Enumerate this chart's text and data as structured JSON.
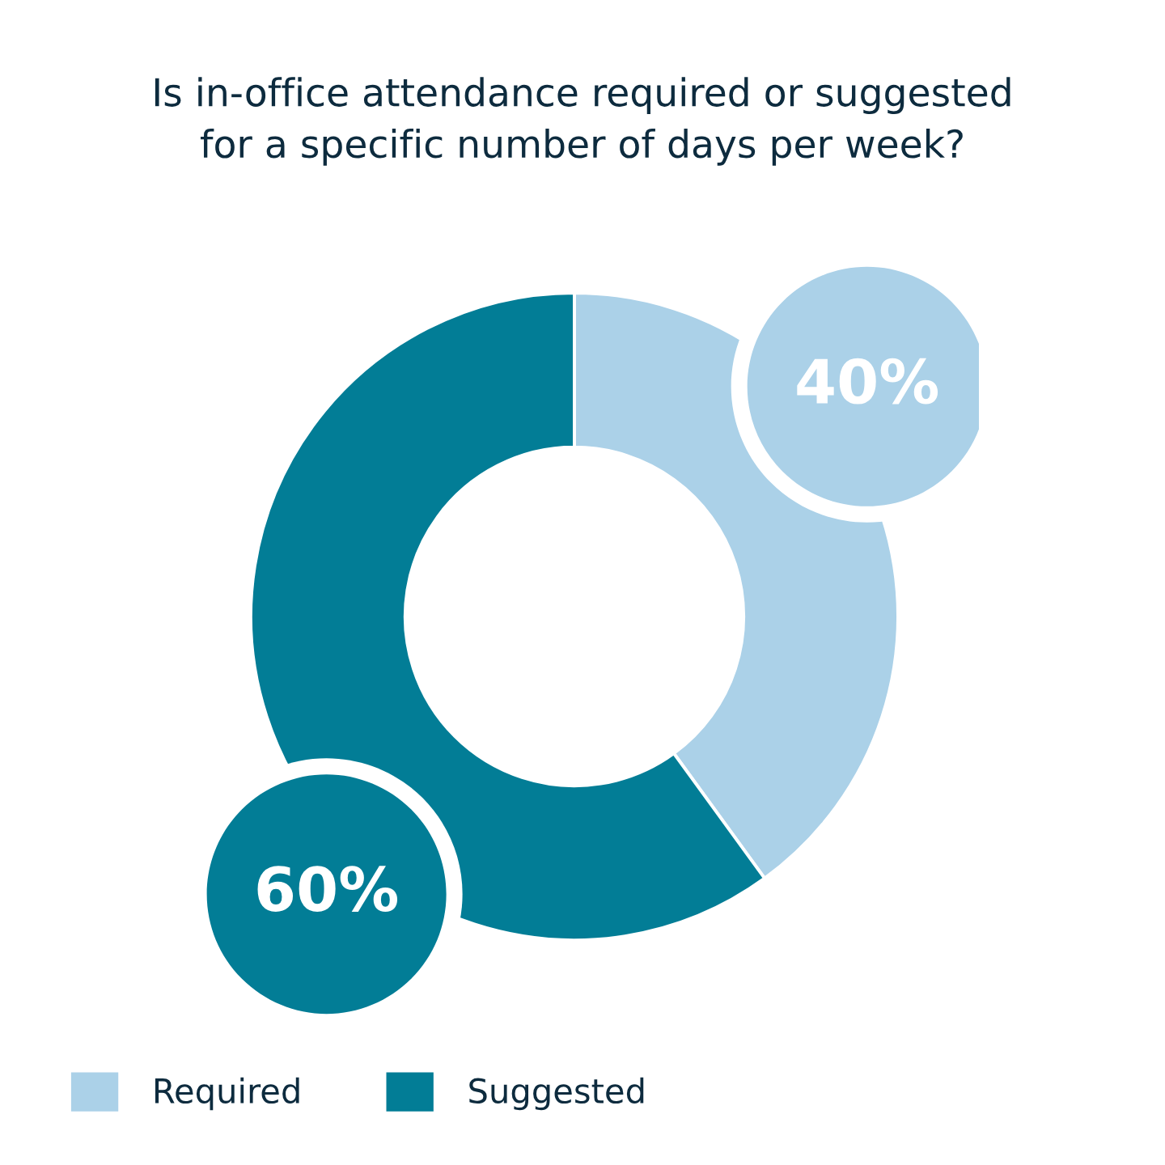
{
  "chart_data": {
    "type": "donut",
    "title": "Is in-office attendance required or suggested\nfor a specific number of days per week?",
    "categories": [
      "Required",
      "Suggested"
    ],
    "values": [
      40,
      60
    ],
    "colors": [
      "#abd1e8",
      "#027d96"
    ],
    "value_labels": [
      "40%",
      "60%"
    ],
    "legend": "bottom"
  }
}
